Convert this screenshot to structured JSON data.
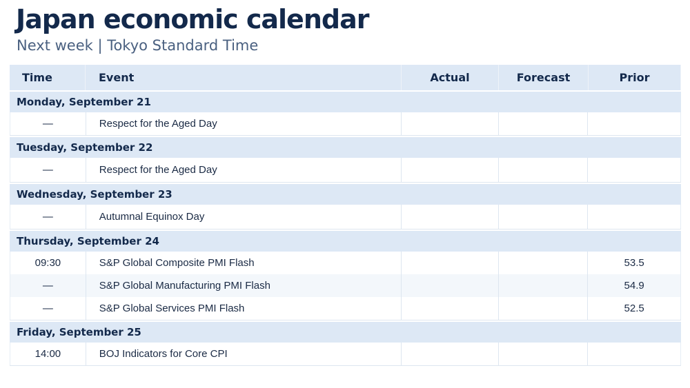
{
  "header": {
    "title": "Japan economic calendar",
    "subtitle": "Next week | Tokyo Standard Time"
  },
  "columns": {
    "time": "Time",
    "event": "Event",
    "actual": "Actual",
    "forecast": "Forecast",
    "prior": "Prior"
  },
  "days": [
    {
      "label": "Monday, September 21",
      "events": [
        {
          "time": "—",
          "event": "Respect for the Aged Day",
          "actual": "",
          "forecast": "",
          "prior": ""
        }
      ]
    },
    {
      "label": "Tuesday, September 22",
      "events": [
        {
          "time": "—",
          "event": "Respect for the Aged Day",
          "actual": "",
          "forecast": "",
          "prior": ""
        }
      ]
    },
    {
      "label": "Wednesday, September 23",
      "events": [
        {
          "time": "—",
          "event": "Autumnal Equinox Day",
          "actual": "",
          "forecast": "",
          "prior": ""
        }
      ]
    },
    {
      "label": "Thursday, September 24",
      "events": [
        {
          "time": "09:30",
          "event": "S&P Global Composite PMI Flash",
          "actual": "",
          "forecast": "",
          "prior": "53.5"
        },
        {
          "time": "—",
          "event": "S&P Global Manufacturing PMI Flash",
          "actual": "",
          "forecast": "",
          "prior": "54.9"
        },
        {
          "time": "—",
          "event": "S&P Global Services PMI Flash",
          "actual": "",
          "forecast": "",
          "prior": "52.5"
        }
      ]
    },
    {
      "label": "Friday, September 25",
      "events": [
        {
          "time": "14:00",
          "event": "BOJ Indicators for Core CPI",
          "actual": "",
          "forecast": "",
          "prior": ""
        }
      ]
    }
  ]
}
